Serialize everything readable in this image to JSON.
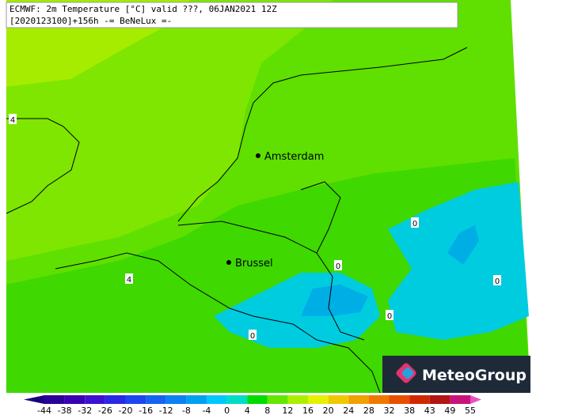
{
  "header": {
    "line1": "ECMWF: 2m Temperature [°C] valid ???, 06JAN2021 12Z",
    "line2": "[2020123100]+156h -= BeNeLux =-"
  },
  "cities": [
    {
      "label": "Amsterdam"
    },
    {
      "label": "Brussel"
    }
  ],
  "contour_labels": [
    "4",
    "4",
    "0",
    "0",
    "0",
    "0",
    "0"
  ],
  "legend": {
    "ticks": [
      -44,
      -38,
      -32,
      -26,
      -20,
      -16,
      -12,
      -8,
      -4,
      0,
      4,
      8,
      12,
      16,
      20,
      24,
      28,
      32,
      38,
      43,
      49,
      55
    ],
    "colors": [
      "#1a007a",
      "#2a0096",
      "#3a00b4",
      "#3d10d2",
      "#2828e6",
      "#1e46f0",
      "#1464f0",
      "#0a82f0",
      "#00a0f0",
      "#00c8ff",
      "#00dcc8",
      "#00dc00",
      "#64e600",
      "#aaf000",
      "#e6f000",
      "#f0c800",
      "#f0a000",
      "#f07800",
      "#e65000",
      "#d22800",
      "#b41414",
      "#c8147a",
      "#e650c8"
    ]
  },
  "logo": {
    "text": "MeteoGroup"
  }
}
